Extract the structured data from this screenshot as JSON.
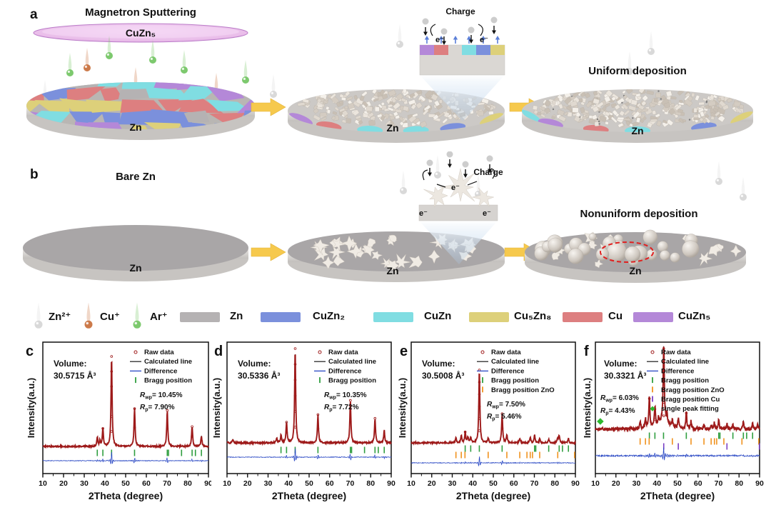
{
  "figure": {
    "panel_a": {
      "label": "a",
      "title": "Magnetron Sputtering",
      "target_label": "CuZn₅",
      "disk1_label": "Zn",
      "disk2_label": "Zn",
      "disk3_label": "Zn",
      "right_title": "Uniform deposition",
      "inset": {
        "title": "Charge",
        "electrons": [
          "e⁻",
          "e⁻"
        ]
      }
    },
    "panel_b": {
      "label": "b",
      "title": "Bare Zn",
      "disk1_label": "Zn",
      "disk2_label": "Zn",
      "disk3_label": "Zn",
      "right_title": "Nonuniform deposition",
      "inset": {
        "title": "Charge",
        "electrons": [
          "e⁻",
          "e⁻",
          "e⁻"
        ]
      }
    },
    "legend": {
      "ions": [
        {
          "label": "Zn²⁺",
          "color": "#d9d9d9"
        },
        {
          "label": "Cu⁺",
          "color": "#cc7a4a"
        },
        {
          "label": "Ar⁺",
          "color": "#7dc96e"
        }
      ],
      "phases": [
        {
          "label": "Zn",
          "color": "#b5b2b3"
        },
        {
          "label": "CuZn₂",
          "color": "#7b90dc"
        },
        {
          "label": "CuZn",
          "color": "#80dde2"
        },
        {
          "label": "Cu₅Zn₈",
          "color": "#ddd07a"
        },
        {
          "label": "Cu",
          "color": "#dd7f80"
        },
        {
          "label": "CuZn₅",
          "color": "#b488d8"
        }
      ]
    },
    "colors": {
      "arrow_yellow": "#f6c94d",
      "target_pink": "#ecc4ee",
      "target_stroke": "#bb7cc8",
      "bare_top": "#a9a6a7",
      "red_dashed": "#e02020"
    }
  },
  "chart_data": [
    {
      "type": "line",
      "panel_label": "c",
      "volume_label": "Volume:",
      "volume_value": "30.5715 Å³",
      "rwp": {
        "prefix": "R",
        "sub": "wp",
        "value": "= 10.45%"
      },
      "rp": {
        "prefix": "R",
        "sub": "p",
        "value": "= 7.90%"
      },
      "r_position": "legend",
      "xlabel": "2Theta (degree)",
      "ylabel": "Intensity(a.u.)",
      "xlim": [
        10,
        90
      ],
      "xticks": [
        10,
        20,
        30,
        40,
        50,
        60,
        70,
        80,
        90
      ],
      "legend": [
        {
          "label": "Raw data",
          "marker": "circle",
          "color": "#9e1a1a"
        },
        {
          "label": "Calculated line",
          "marker": "line",
          "color": "#2a2a2a"
        },
        {
          "label": "Difference",
          "marker": "line",
          "color": "#2847c4"
        },
        {
          "label": "Bragg position",
          "marker": "tick",
          "color": "#2f9e3f"
        }
      ],
      "series": {
        "noise": 0.008,
        "peaks": [
          [
            36.3,
            0.1
          ],
          [
            37.6,
            0.06
          ],
          [
            39.0,
            0.2
          ],
          [
            43.2,
            1.0
          ],
          [
            54.3,
            0.42
          ],
          [
            70.1,
            0.4
          ],
          [
            82.1,
            0.22
          ],
          [
            86.6,
            0.12
          ]
        ],
        "bragg": [
          {
            "name": "Zn",
            "color": "#2f9e3f",
            "positions": [
              36.3,
              39.0,
              43.2,
              54.3,
              70.1,
              70.7,
              77.0,
              82.1,
              83.7,
              86.6
            ]
          }
        ]
      }
    },
    {
      "type": "line",
      "panel_label": "d",
      "volume_label": "Volume:",
      "volume_value": "30.5336 Å³",
      "rwp": {
        "prefix": "R",
        "sub": "wp",
        "value": "= 10.35%"
      },
      "rp": {
        "prefix": "R",
        "sub": "p",
        "value": "= 7.72%"
      },
      "r_position": "legend",
      "xlabel": "2Theta (degree)",
      "ylabel": "Intensity(a.u.)",
      "xlim": [
        10,
        90
      ],
      "xticks": [
        10,
        20,
        30,
        40,
        50,
        60,
        70,
        80,
        90
      ],
      "legend": [
        {
          "label": "Raw data",
          "marker": "circle",
          "color": "#9e1a1a"
        },
        {
          "label": "Calculated line",
          "marker": "line",
          "color": "#2a2a2a"
        },
        {
          "label": "Difference",
          "marker": "line",
          "color": "#2847c4"
        },
        {
          "label": "Bragg position",
          "marker": "tick",
          "color": "#2f9e3f"
        }
      ],
      "series": {
        "noise": 0.008,
        "peaks": [
          [
            12.8,
            0.04
          ],
          [
            34.2,
            0.05
          ],
          [
            36.3,
            0.08
          ],
          [
            39.0,
            0.22
          ],
          [
            43.2,
            1.0
          ],
          [
            54.3,
            0.3
          ],
          [
            70.1,
            0.45
          ],
          [
            82.1,
            0.26
          ],
          [
            86.6,
            0.13
          ]
        ],
        "bragg": [
          {
            "name": "Zn",
            "color": "#2f9e3f",
            "positions": [
              36.3,
              39.0,
              43.2,
              54.3,
              70.1,
              70.7,
              77.0,
              82.1,
              83.7,
              86.6
            ]
          }
        ]
      }
    },
    {
      "type": "line",
      "panel_label": "e",
      "volume_label": "Volume:",
      "volume_value": "30.5008 Å³",
      "rwp": {
        "prefix": "R",
        "sub": "wp",
        "value": "= 7.50%"
      },
      "rp": {
        "prefix": "R",
        "sub": "p",
        "value": "= 5.46%"
      },
      "r_position": "legend",
      "xlabel": "2Theta (degree)",
      "ylabel": "Intensity(a.u.)",
      "xlim": [
        10,
        90
      ],
      "xticks": [
        10,
        20,
        30,
        40,
        50,
        60,
        70,
        80,
        90
      ],
      "legend": [
        {
          "label": "Raw data",
          "marker": "circle",
          "color": "#9e1a1a"
        },
        {
          "label": "Calculated line",
          "marker": "line",
          "color": "#2a2a2a"
        },
        {
          "label": "Difference",
          "marker": "line",
          "color": "#2847c4"
        },
        {
          "label": "Bragg position",
          "marker": "tick",
          "color": "#2f9e3f"
        },
        {
          "label": "Bragg position ZnO",
          "marker": "tick",
          "color": "#f0921e"
        }
      ],
      "series": {
        "noise": 0.01,
        "peaks": [
          [
            31.8,
            0.07
          ],
          [
            34.4,
            0.1
          ],
          [
            36.3,
            0.15
          ],
          [
            37.6,
            0.08
          ],
          [
            39.0,
            0.07
          ],
          [
            43.2,
            1.0
          ],
          [
            47.5,
            0.07
          ],
          [
            54.3,
            0.4
          ],
          [
            56.6,
            0.11
          ],
          [
            62.9,
            0.06
          ],
          [
            68.0,
            0.07
          ],
          [
            70.1,
            0.11
          ],
          [
            72.6,
            0.05
          ],
          [
            77.0,
            0.05
          ],
          [
            81.4,
            0.06
          ],
          [
            82.1,
            0.09
          ],
          [
            86.6,
            0.06
          ]
        ],
        "bragg": [
          {
            "name": "Zn",
            "color": "#2f9e3f",
            "positions": [
              36.3,
              39.0,
              43.2,
              54.3,
              70.1,
              70.7,
              77.0,
              82.1,
              83.7,
              86.6
            ]
          },
          {
            "name": "ZnO",
            "color": "#f0921e",
            "positions": [
              31.8,
              34.4,
              36.2,
              47.5,
              56.6,
              62.9,
              66.4,
              68.0,
              69.1,
              72.6,
              81.4,
              89.6
            ]
          }
        ]
      }
    },
    {
      "type": "line",
      "panel_label": "f",
      "volume_label": "Volume:",
      "volume_value": "30.3321 Å³",
      "rwp": {
        "prefix": "R",
        "sub": "wp",
        "value": "= 6.03%"
      },
      "rp": {
        "prefix": "R",
        "sub": "p",
        "value": "= 4.43%"
      },
      "r_position": "left",
      "xlabel": "2Theta (degree)",
      "ylabel": "Intensity(a.u.)",
      "xlim": [
        10,
        90
      ],
      "xticks": [
        10,
        20,
        30,
        40,
        50,
        60,
        70,
        80,
        90
      ],
      "single_peak_x": 12.4,
      "legend": [
        {
          "label": "Raw data",
          "marker": "circle",
          "color": "#9e1a1a"
        },
        {
          "label": "Calculated line",
          "marker": "line",
          "color": "#2a2a2a"
        },
        {
          "label": "Difference",
          "marker": "line",
          "color": "#2847c4"
        },
        {
          "label": "Bragg position",
          "marker": "tick",
          "color": "#2f9e3f"
        },
        {
          "label": "Bragg position ZnO",
          "marker": "tick",
          "color": "#f0921e"
        },
        {
          "label": "Bragg position Cu",
          "marker": "tick",
          "color": "#7b3fc4"
        },
        {
          "label": "single peak fitting",
          "marker": "diamond",
          "color": "#2eb82e"
        }
      ],
      "series": {
        "noise": 0.02,
        "peaks": [
          [
            31.8,
            0.09
          ],
          [
            34.4,
            0.12
          ],
          [
            36.3,
            0.38
          ],
          [
            39.0,
            0.25
          ],
          [
            40.8,
            0.08
          ],
          [
            43.3,
            1.0
          ],
          [
            43.3,
            0.1,
            3.0
          ],
          [
            44.9,
            0.1
          ],
          [
            47.5,
            0.08
          ],
          [
            50.4,
            0.12
          ],
          [
            54.3,
            0.2
          ],
          [
            56.6,
            0.09
          ],
          [
            62.9,
            0.06
          ],
          [
            66.4,
            0.05
          ],
          [
            68.0,
            0.08
          ],
          [
            70.1,
            0.11
          ],
          [
            74.1,
            0.06
          ],
          [
            77.0,
            0.06
          ],
          [
            82.1,
            0.11
          ],
          [
            86.6,
            0.07
          ],
          [
            89.0,
            0.05
          ]
        ],
        "bragg": [
          {
            "name": "Zn",
            "color": "#2f9e3f",
            "positions": [
              36.3,
              39.0,
              43.2,
              54.3,
              70.1,
              70.7,
              77.0,
              82.1,
              83.7,
              86.6
            ]
          },
          {
            "name": "ZnO",
            "color": "#f0921e",
            "positions": [
              31.8,
              34.4,
              36.2,
              47.5,
              56.6,
              62.9,
              66.4,
              68.0,
              69.1,
              72.6,
              81.4,
              89.6
            ]
          },
          {
            "name": "Cu",
            "color": "#7b3fc4",
            "positions": [
              43.3,
              50.4,
              74.1,
              89.9
            ]
          }
        ]
      }
    }
  ]
}
